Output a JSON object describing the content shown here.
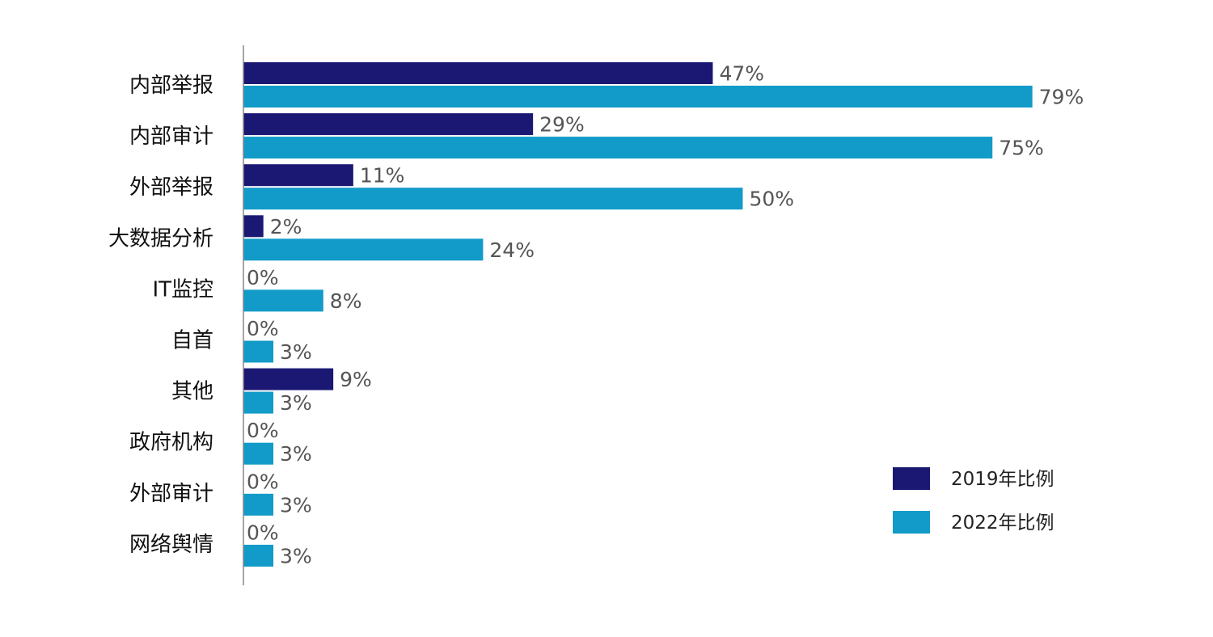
{
  "chart_data": {
    "type": "bar",
    "orientation": "horizontal",
    "categories": [
      "内部举报",
      "内部审计",
      "外部举报",
      "大数据分析",
      "IT监控",
      "自首",
      "其他",
      "政府机构",
      "外部审计",
      "网络舆情"
    ],
    "series": [
      {
        "name": "2019年比例",
        "color": "#1b1874",
        "values": [
          47,
          29,
          11,
          2,
          0,
          0,
          9,
          0,
          0,
          0
        ],
        "labels": [
          "47%",
          "29%",
          "11%",
          "2%",
          "0%",
          "0%",
          "9%",
          "0%",
          "0%",
          "0%"
        ]
      },
      {
        "name": "2022年比例",
        "color": "#129bc8",
        "values": [
          79,
          75,
          50,
          24,
          8,
          3,
          3,
          3,
          3,
          3
        ],
        "labels": [
          "79%",
          "75%",
          "50%",
          "24%",
          "8%",
          "3%",
          "3%",
          "3%",
          "3%",
          "3%"
        ]
      }
    ],
    "value_unit": "%",
    "xlim": [
      0,
      80
    ],
    "grid": false,
    "legend_position": "bottom-right",
    "axis_color": "#888888"
  }
}
